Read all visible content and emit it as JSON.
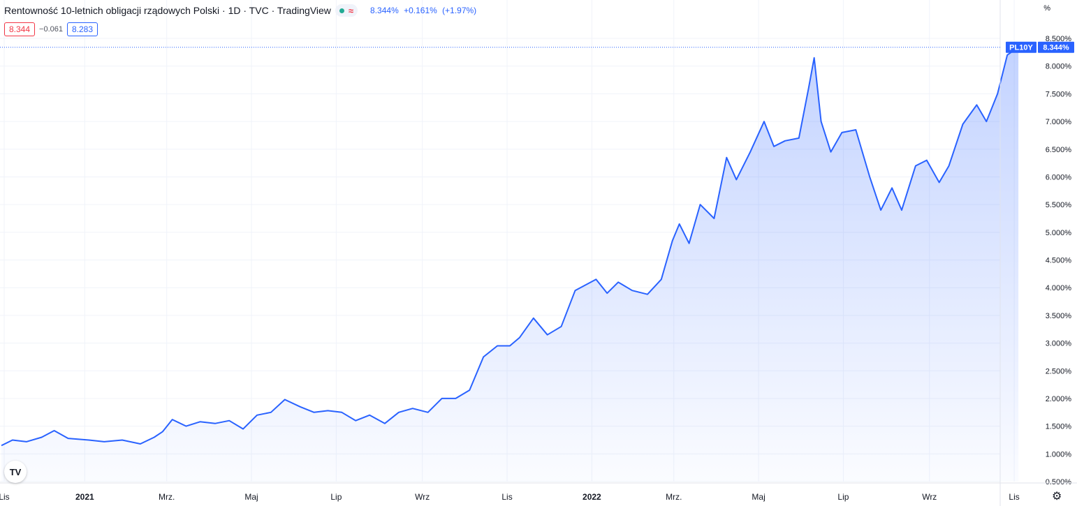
{
  "header": {
    "title": "Rentowność 10-letnich obligacji rządowych Polski · 1D · TVC · TradingView",
    "status_icon": "≈",
    "last": "8.344%",
    "change": "+0.161%",
    "change_pct": "(+1.97%)"
  },
  "badges": {
    "sell": "8.344",
    "spread": "−0.061",
    "buy": "8.283"
  },
  "axis": {
    "unit": "%",
    "y_ticks": [
      "8.500%",
      "8.000%",
      "7.500%",
      "7.000%",
      "6.500%",
      "6.000%",
      "5.500%",
      "5.000%",
      "4.500%",
      "4.000%",
      "3.500%",
      "3.000%",
      "2.500%",
      "2.000%",
      "1.500%",
      "1.000%",
      "0.500%"
    ],
    "x_ticks": [
      {
        "label": "Lis",
        "bold": false
      },
      {
        "label": "2021",
        "bold": true
      },
      {
        "label": "Mrz.",
        "bold": false
      },
      {
        "label": "Maj",
        "bold": false
      },
      {
        "label": "Lip",
        "bold": false
      },
      {
        "label": "Wrz",
        "bold": false
      },
      {
        "label": "Lis",
        "bold": false
      },
      {
        "label": "2022",
        "bold": true
      },
      {
        "label": "Mrz.",
        "bold": false
      },
      {
        "label": "Maj",
        "bold": false
      },
      {
        "label": "Lip",
        "bold": false
      },
      {
        "label": "Wrz",
        "bold": false
      },
      {
        "label": "Lis",
        "bold": false
      }
    ]
  },
  "price_tag": {
    "symbol": "PL10Y",
    "value": "8.344%"
  },
  "logo": "TV",
  "icons": {
    "logo": "tradingview-logo-icon",
    "settings": "gear-icon",
    "status": "approx-icon"
  },
  "colors": {
    "line": "#2962ff",
    "fill": "#2962ff",
    "grid": "#f0f3fa",
    "axis_text": "#131722"
  },
  "chart_data": {
    "type": "area",
    "title": "Rentowność 10-letnich obligacji rządowych Polski",
    "ylabel": "%",
    "ylim": [
      0.5,
      8.5
    ],
    "x_domain": [
      "2020-11-01",
      "2022-11-10"
    ],
    "series": [
      {
        "x": [
          "2020-11-02",
          "2020-11-10",
          "2020-11-20",
          "2020-12-01",
          "2020-12-10",
          "2020-12-20",
          "2021-01-04",
          "2021-01-15",
          "2021-01-28",
          "2021-02-10",
          "2021-02-20",
          "2021-02-26",
          "2021-03-05",
          "2021-03-15",
          "2021-03-25",
          "2021-04-05",
          "2021-04-15",
          "2021-04-25",
          "2021-05-05",
          "2021-05-15",
          "2021-05-25",
          "2021-06-05",
          "2021-06-15",
          "2021-06-25",
          "2021-07-05",
          "2021-07-15",
          "2021-07-25",
          "2021-08-05",
          "2021-08-15",
          "2021-08-25",
          "2021-09-05",
          "2021-09-15",
          "2021-09-25",
          "2021-10-05",
          "2021-10-15",
          "2021-10-25",
          "2021-11-03",
          "2021-11-10",
          "2021-11-20",
          "2021-11-30",
          "2021-12-10",
          "2021-12-20",
          "2022-01-04",
          "2022-01-12",
          "2022-01-20",
          "2022-01-30",
          "2022-02-10",
          "2022-02-20",
          "2022-02-28",
          "2022-03-05",
          "2022-03-12",
          "2022-03-20",
          "2022-03-30",
          "2022-04-08",
          "2022-04-15",
          "2022-04-25",
          "2022-05-05",
          "2022-05-12",
          "2022-05-20",
          "2022-05-30",
          "2022-06-06",
          "2022-06-10",
          "2022-06-15",
          "2022-06-22",
          "2022-06-30",
          "2022-07-10",
          "2022-07-20",
          "2022-07-28",
          "2022-08-05",
          "2022-08-12",
          "2022-08-22",
          "2022-08-30",
          "2022-09-08",
          "2022-09-15",
          "2022-09-25",
          "2022-10-05",
          "2022-10-12",
          "2022-10-20",
          "2022-10-27",
          "2022-11-04"
        ],
        "values": [
          1.15,
          1.25,
          1.22,
          1.3,
          1.42,
          1.28,
          1.25,
          1.22,
          1.25,
          1.18,
          1.3,
          1.4,
          1.62,
          1.5,
          1.58,
          1.55,
          1.6,
          1.45,
          1.7,
          1.75,
          1.98,
          1.85,
          1.75,
          1.78,
          1.75,
          1.6,
          1.7,
          1.55,
          1.75,
          1.82,
          1.75,
          2.0,
          2.0,
          2.15,
          2.75,
          2.95,
          2.95,
          3.1,
          3.45,
          3.15,
          3.3,
          3.95,
          4.15,
          3.9,
          4.1,
          3.95,
          3.88,
          4.15,
          4.85,
          5.15,
          4.8,
          5.5,
          5.25,
          6.35,
          5.95,
          6.45,
          7.0,
          6.55,
          6.65,
          6.7,
          7.6,
          8.15,
          7.0,
          6.45,
          6.8,
          6.85,
          6.0,
          5.4,
          5.8,
          5.4,
          6.2,
          6.3,
          5.9,
          6.2,
          6.95,
          7.3,
          7.0,
          7.5,
          8.2,
          8.34
        ]
      }
    ]
  }
}
